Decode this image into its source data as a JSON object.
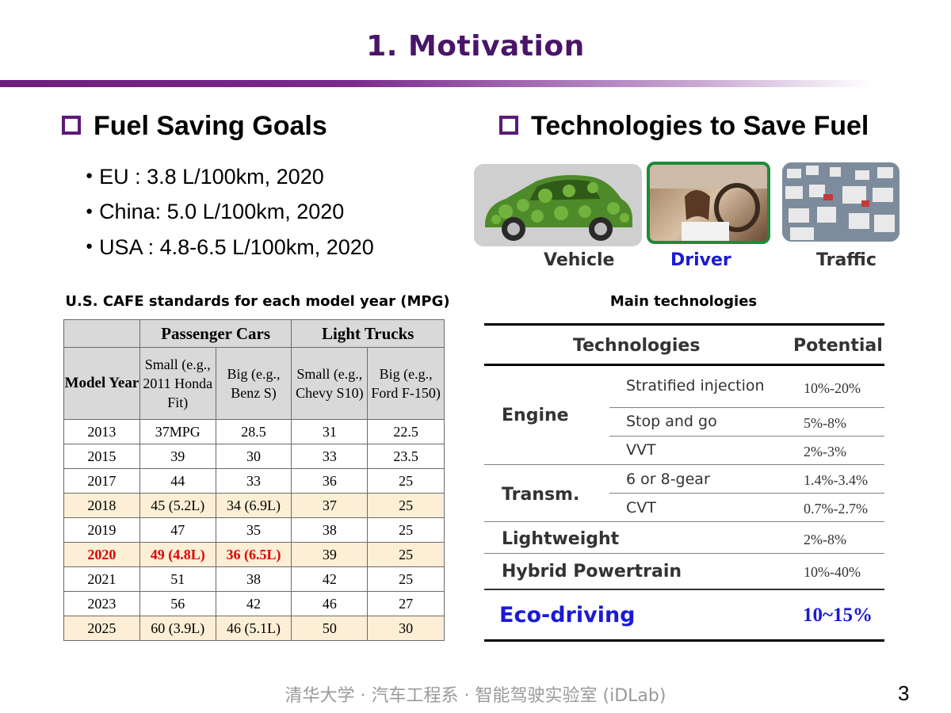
{
  "title": "1. Motivation",
  "left": {
    "heading": "Fuel Saving Goals",
    "goals": [
      "EU : 3.8 L/100km, 2020",
      "China: 5.0 L/100km, 2020",
      "USA : 4.8-6.5 L/100km, 2020"
    ]
  },
  "right": {
    "heading": "Technologies to Save Fuel",
    "images": [
      {
        "label": "Vehicle",
        "color": "#333333"
      },
      {
        "label": "Driver",
        "color": "#1a1ad6"
      },
      {
        "label": "Traffic",
        "color": "#333333"
      }
    ]
  },
  "cafe": {
    "caption": "U.S. CAFE standards for each model year (MPG)",
    "group_headers": [
      "Passenger Cars",
      "Light Trucks"
    ],
    "model_year_header": "Model Year",
    "sub_headers": [
      "Small (e.g., 2011 Honda Fit)",
      "Big (e.g., Benz S)",
      "Small (e.g., Chevy S10)",
      "Big (e.g., Ford F-150)"
    ],
    "rows": [
      {
        "year": "2013",
        "cells": [
          "37MPG",
          "28.5",
          "31",
          "22.5"
        ],
        "style": ""
      },
      {
        "year": "2015",
        "cells": [
          "39",
          "30",
          "33",
          "23.5"
        ],
        "style": ""
      },
      {
        "year": "2017",
        "cells": [
          "44",
          "33",
          "36",
          "25"
        ],
        "style": ""
      },
      {
        "year": "2018",
        "cells": [
          "45 (5.2L)",
          "34 (6.9L)",
          "37",
          "25"
        ],
        "style": "hl"
      },
      {
        "year": "2019",
        "cells": [
          "47",
          "35",
          "38",
          "25"
        ],
        "style": ""
      },
      {
        "year": "2020",
        "cells": [
          "49 (4.8L)",
          "36 (6.5L)",
          "39",
          "25"
        ],
        "style": "hl red"
      },
      {
        "year": "2021",
        "cells": [
          "51",
          "38",
          "42",
          "25"
        ],
        "style": ""
      },
      {
        "year": "2023",
        "cells": [
          "56",
          "42",
          "46",
          "27"
        ],
        "style": ""
      },
      {
        "year": "2025",
        "cells": [
          "60 (3.9L)",
          "46 (5.1L)",
          "50",
          "30"
        ],
        "style": "hl"
      }
    ]
  },
  "main_tech": {
    "caption": "Main technologies",
    "header_tech": "Technologies",
    "header_potential": "Potential",
    "groups": [
      {
        "name": "Engine",
        "items": [
          {
            "name": "Stratified injection",
            "potential": "10%-20%"
          },
          {
            "name": "Stop and go",
            "potential": "5%-8%"
          },
          {
            "name": "VVT",
            "potential": "2%-3%"
          }
        ]
      },
      {
        "name": "Transm.",
        "items": [
          {
            "name": "6 or 8-gear",
            "potential": "1.4%-3.4%"
          },
          {
            "name": "CVT",
            "potential": "0.7%-2.7%"
          }
        ]
      }
    ],
    "singles": [
      {
        "name": "Lightweight",
        "potential": "2%-8%"
      },
      {
        "name": "Hybrid Powertrain",
        "potential": "10%-40%"
      }
    ],
    "eco": {
      "name": "Eco-driving",
      "potential": "10~15%",
      "color": "#1a1ad6"
    }
  },
  "footer": "清华大学 · 汽车工程系 · 智能驾驶实验室 (iDLab)",
  "page_number": "3"
}
